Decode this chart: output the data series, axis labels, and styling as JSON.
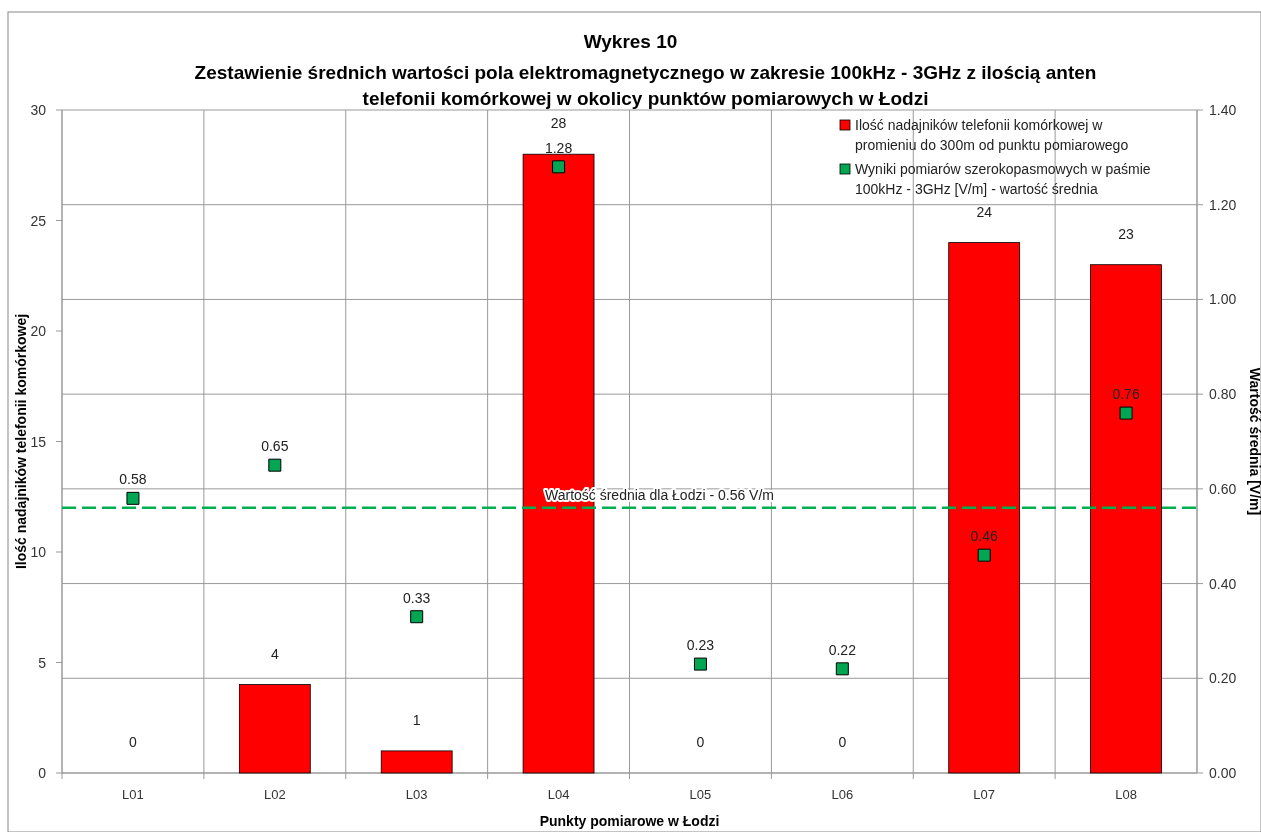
{
  "chart_data": {
    "type": "bar",
    "title": "Wykres 10",
    "subtitle": "Zestawienie średnich wartości pola elektromagnetycznego w zakresie 100kHz - 3GHz  z ilością anten telefonii komórkowej w okolicy punktów pomiarowych w Łodzi",
    "xlabel": "Punkty pomiarowe w Łodzi",
    "ylabel": "Ilość nadajników telefonii komórkowej",
    "y2label": "Wartość średnia [V/m]",
    "categories": [
      "L01",
      "L02",
      "L03",
      "L04",
      "L05",
      "L06",
      "L07",
      "L08"
    ],
    "series": [
      {
        "name": "Ilość nadajników telefonii komórkowej w promieniu do 300m od punktu pomiarowego",
        "color": "#ff0000",
        "values": [
          0,
          4,
          1,
          28,
          0,
          0,
          24,
          23
        ]
      },
      {
        "name": "Wyniki pomiarów szerokopasmowych w paśmie 100kHz - 3GHz [V/m] - wartość średnia",
        "type": "scatter",
        "axis": "y2",
        "color": "#00a651",
        "marker": "square",
        "values": [
          0.58,
          0.65,
          0.33,
          1.28,
          0.23,
          0.22,
          0.46,
          0.76
        ],
        "value_labels": [
          "0.58",
          "0.65",
          "0.33",
          "1.28",
          "0.23",
          "0.22",
          "0.46",
          "0.76"
        ]
      }
    ],
    "ylim": [
      0,
      30
    ],
    "yticks": [
      0,
      5,
      10,
      15,
      20,
      25,
      30
    ],
    "y2lim": [
      0,
      1.4
    ],
    "y2ticks": [
      {
        "value": 0,
        "label": "0.00"
      },
      {
        "value": 0.2,
        "label": "0.20"
      },
      {
        "value": 0.4,
        "label": "0.40"
      },
      {
        "value": 0.6,
        "label": "0.60"
      },
      {
        "value": 0.8,
        "label": "0.80"
      },
      {
        "value": 1,
        "label": "1.00"
      },
      {
        "value": 1.2,
        "label": "1.20"
      },
      {
        "value": 1.4,
        "label": "1.40"
      }
    ],
    "ref_lines": [
      {
        "axis": "y2",
        "value": 0.56,
        "label": "Wartość średnia dla Łodzi - 0.56 V/m",
        "color": "#00b050",
        "line_style": "dashed"
      }
    ],
    "data_labels": true,
    "grid": true,
    "legend": "top right"
  }
}
